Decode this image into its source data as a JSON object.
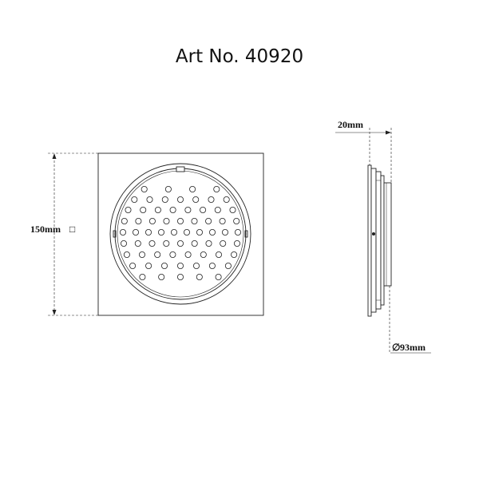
{
  "title": "Art No. 40920",
  "front_view": {
    "size_label": "150mm",
    "size_symbol": "□"
  },
  "side_view": {
    "depth_label": "20mm",
    "diameter_symbol": "∅",
    "diameter_label": "93mm"
  }
}
